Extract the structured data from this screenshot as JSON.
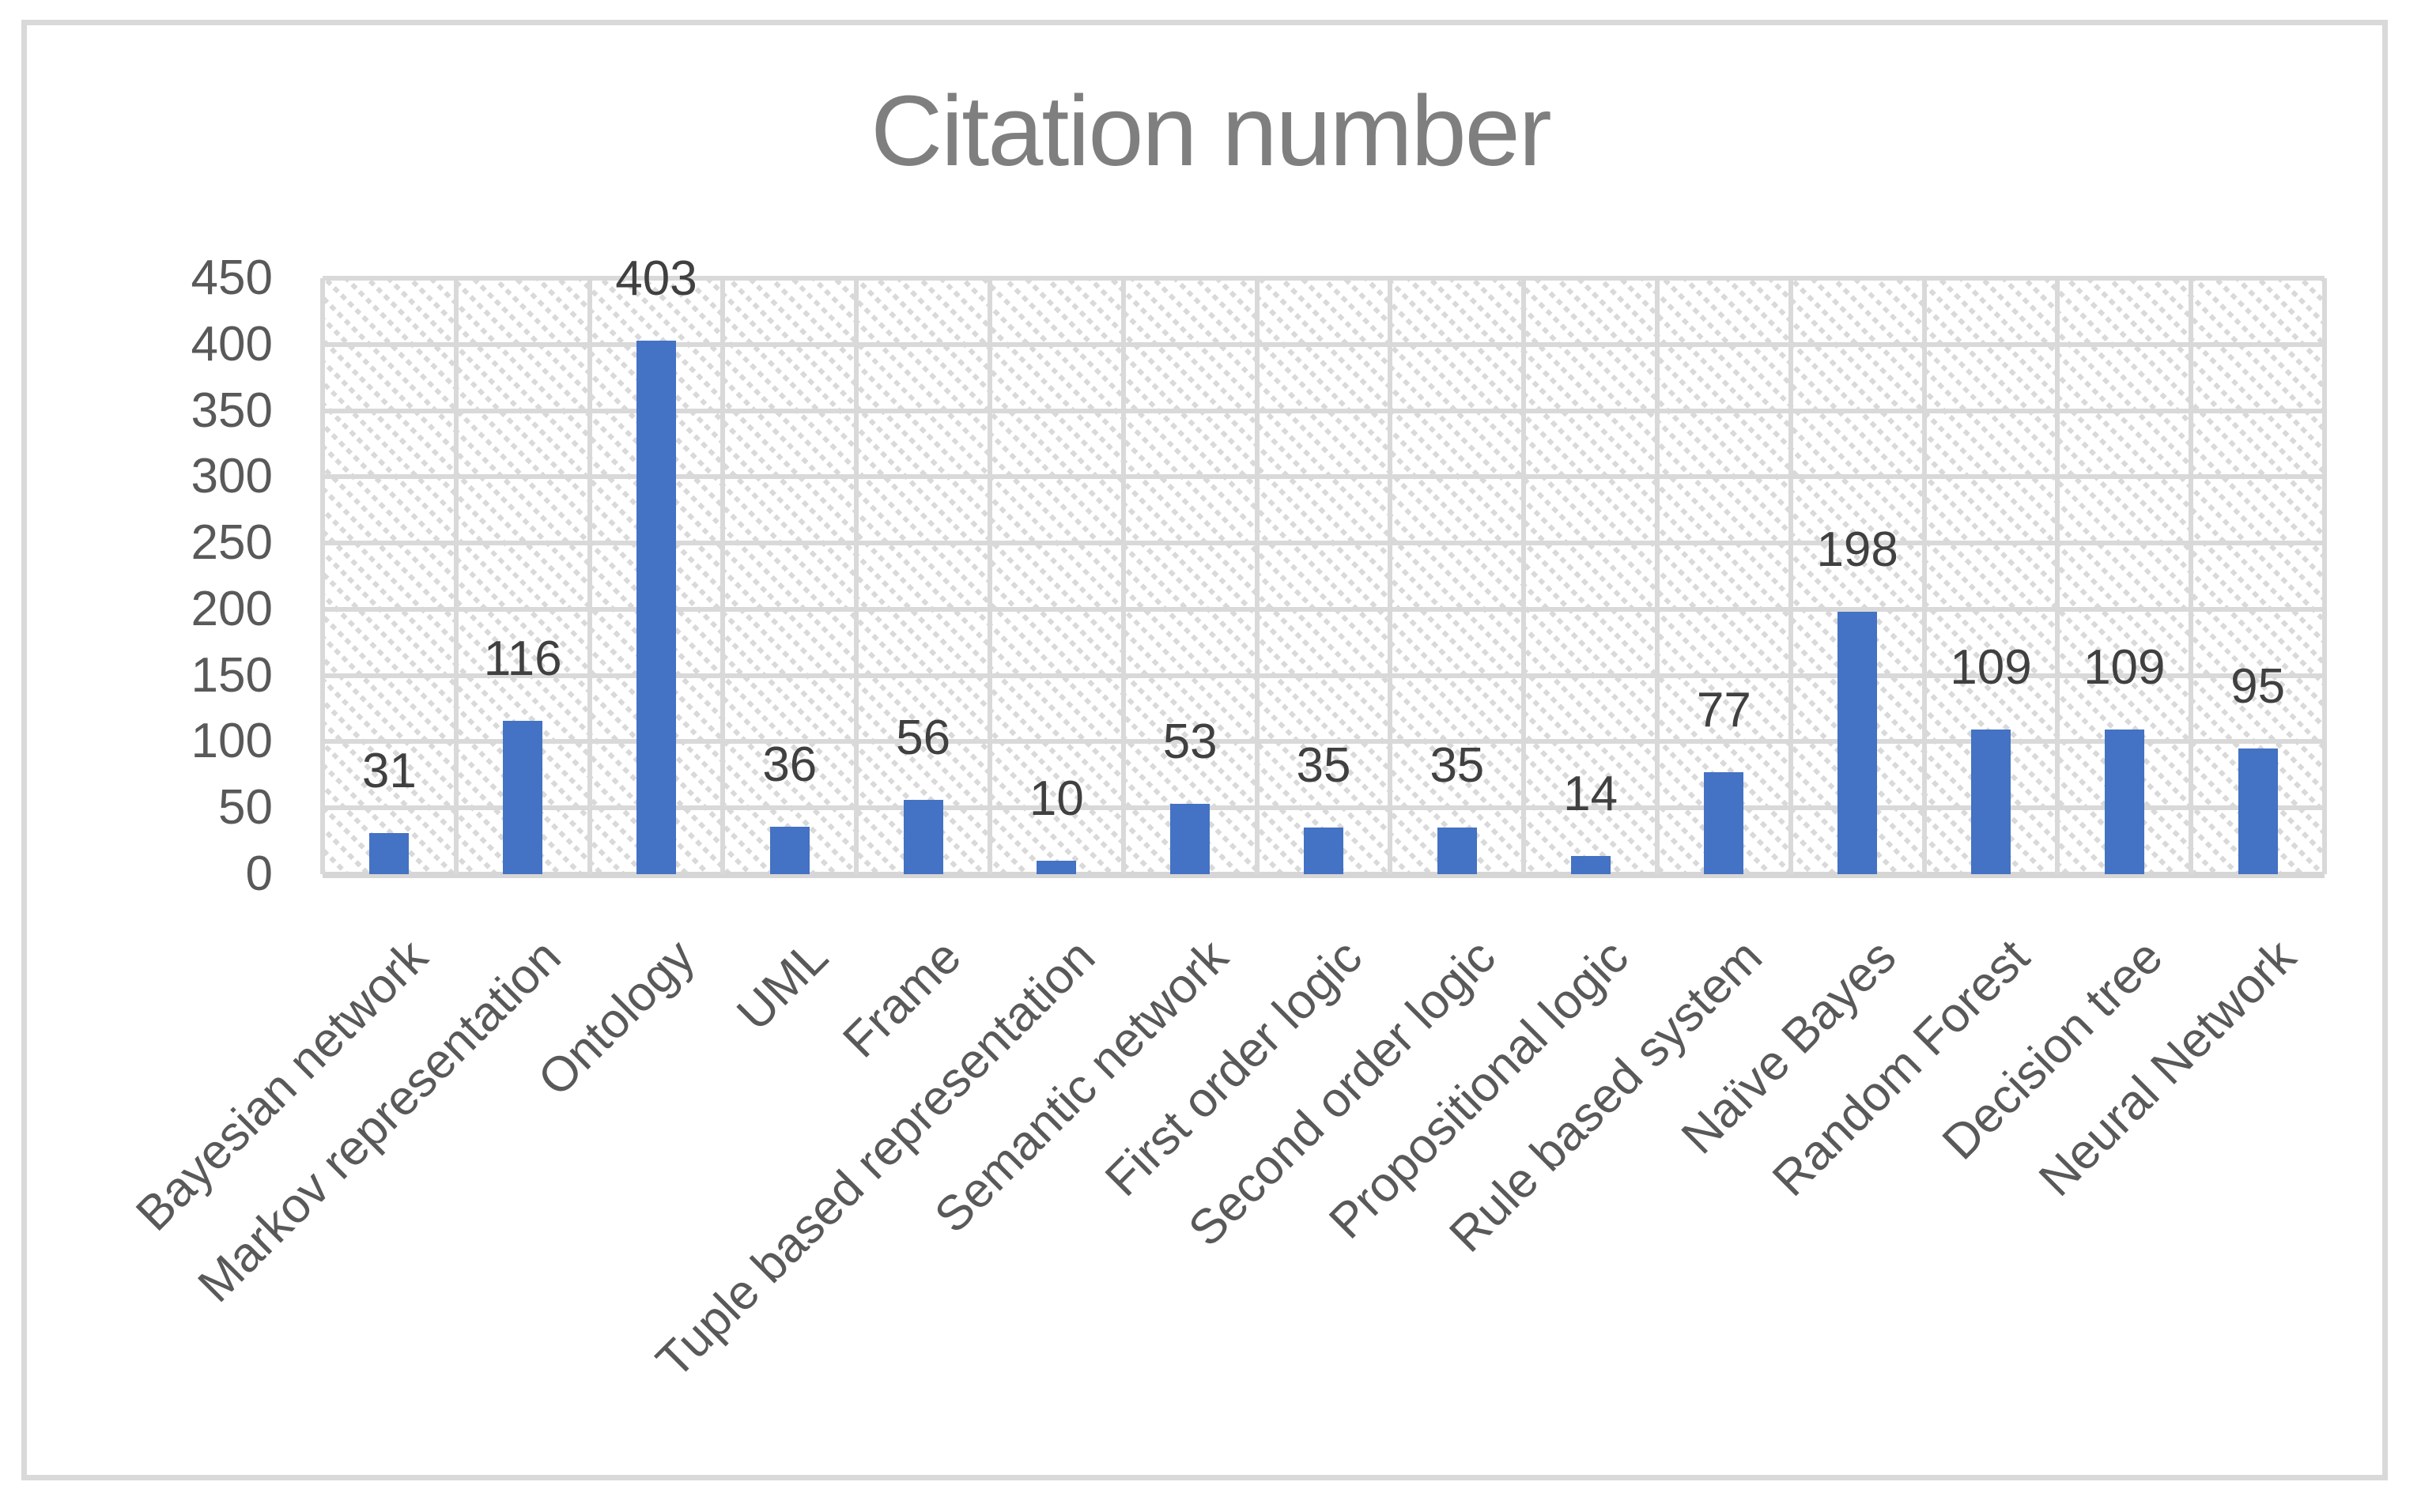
{
  "chart_data": {
    "type": "bar",
    "title": "Citation number",
    "categories": [
      "Bayesian network",
      "Markov representation",
      "Ontology",
      "UML",
      "Frame",
      "Tuple based representation",
      "Semantic network",
      "First order logic",
      "Second order logic",
      "Propositional logic",
      "Rule based system",
      "Naïve Bayes",
      "Random Forest",
      "Decision tree",
      "Neural Network"
    ],
    "values": [
      31,
      116,
      403,
      36,
      56,
      10,
      53,
      35,
      35,
      14,
      77,
      198,
      109,
      109,
      95
    ],
    "xlabel": "",
    "ylabel": "",
    "ylim": [
      0,
      450
    ],
    "yticks": [
      0,
      50,
      100,
      150,
      200,
      250,
      300,
      350,
      400,
      450
    ],
    "grid": {
      "horizontal": true,
      "vertical": true
    },
    "legend": "none",
    "data_labels": "outside-end",
    "category_label_rotation_deg": 45,
    "plot_background": "light diagonal hatch pattern",
    "colors": {
      "bar": "#4472C4",
      "gridline": "#D9D9D9",
      "title_text": "#7F7F7F",
      "axis_text": "#595959",
      "data_label_text": "#404040",
      "chart_border": "#D9D9D9",
      "background": "#FFFFFF"
    }
  }
}
